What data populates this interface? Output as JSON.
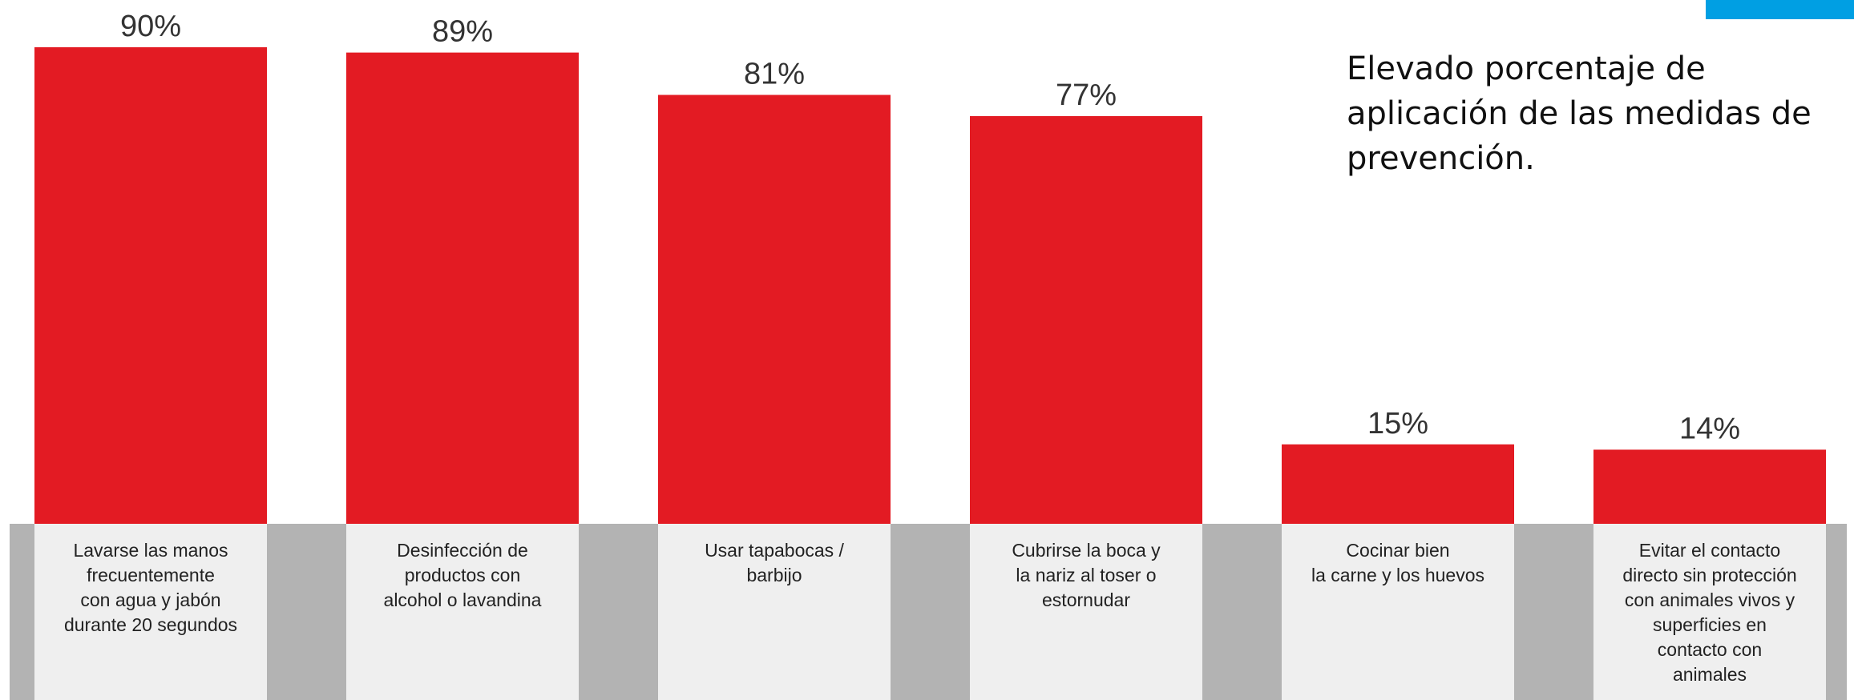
{
  "chart_data": {
    "type": "bar",
    "title": "",
    "xlabel": "",
    "ylabel": "",
    "ylim": [
      0,
      90
    ],
    "grid": false,
    "legend": "none",
    "categories": [
      "Lavarse las manos\nfrecuentemente\ncon agua y jabón\ndurante 20 segundos",
      "Desinfección de\nproductos con\nalcohol o lavandina",
      "Usar tapabocas /\nbarbijo",
      "Cubrirse la boca y\nla nariz al toser o\nestornudar",
      "Cocinar bien\nla carne y los huevos",
      "Evitar el contacto\ndirecto sin protección\ncon animales vivos y\nsuperficies en\ncontacto con\nanimales"
    ],
    "values": [
      90,
      89,
      81,
      77,
      15,
      14
    ],
    "data_labels": [
      "90%",
      "89%",
      "81%",
      "77%",
      "15%",
      "14%"
    ]
  },
  "annotation": "Elevado porcentaje de\naplicación de las medidas de\nprevención.",
  "colors": {
    "bar": "#e31b23",
    "label_panel": "#efefef",
    "strip": "#b3b3b3",
    "accent_tab": "#009fe3",
    "value_text": "#333333",
    "category_text": "#222222"
  }
}
